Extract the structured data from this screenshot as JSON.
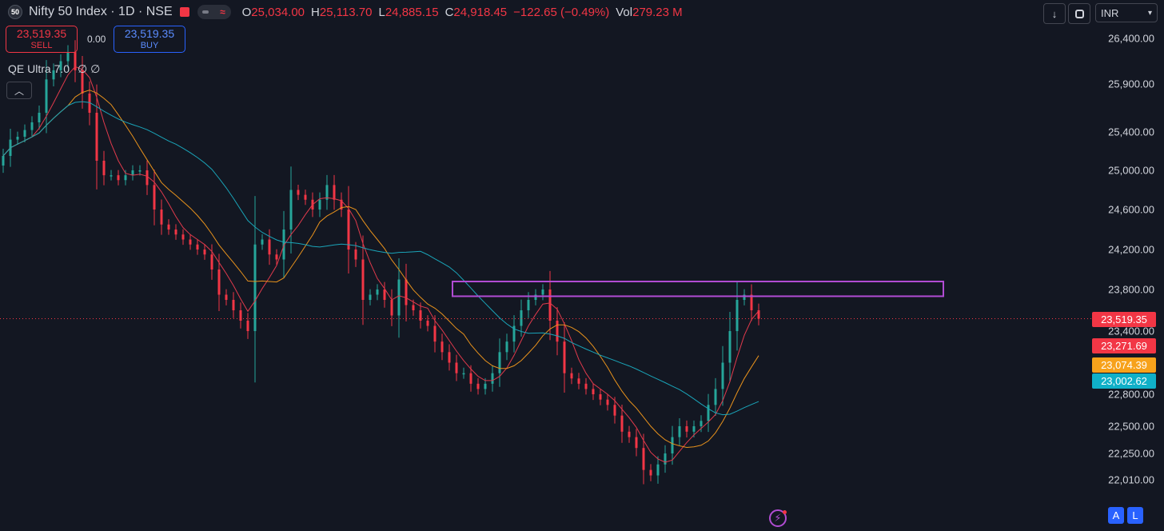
{
  "header": {
    "symbol_badge": "50",
    "title": "Nifty 50 Index · 1D · NSE",
    "pill_text": "≈",
    "ohlc": [
      {
        "k": "O",
        "v": "25,034.00"
      },
      {
        "k": "H",
        "v": "25,113.70"
      },
      {
        "k": "L",
        "v": "24,885.15"
      },
      {
        "k": "C",
        "v": "24,918.45"
      },
      {
        "k": "",
        "v": "−122.65 (−0.49%)"
      },
      {
        "k": "Vol",
        "v": "279.23 M"
      }
    ],
    "currency": "INR"
  },
  "trade": {
    "sell_price": "23,519.35",
    "sell_label": "SELL",
    "spread": "0.00",
    "buy_price": "23,519.35",
    "buy_label": "BUY"
  },
  "indicator": {
    "name": "QE Ultra 7.0",
    "flags": "∅ ∅"
  },
  "bottom": {
    "a": "A",
    "l": "L"
  },
  "colors": {
    "up": "#26a69a",
    "down": "#f23645",
    "ma_fast": "#e03a4c",
    "ma_mid": "#e8921c",
    "ma_slow": "#1aa4b8",
    "box": "#b14cd3",
    "bg": "#131722"
  },
  "chart_data": {
    "type": "candlestick",
    "symbol": "Nifty 50 Index",
    "interval": "1D",
    "y_ticks": [
      26400,
      25900,
      25400,
      25000,
      24600,
      24200,
      23800,
      23400,
      22800,
      22500,
      22250,
      22010
    ],
    "y_tick_labels": [
      "26,400.00",
      "25,900.00",
      "25,400.00",
      "25,000.00",
      "24,600.00",
      "24,200.00",
      "23,800.00",
      "23,400.00",
      "22,800.00",
      "22,500.00",
      "22,250.00",
      "22,010.00"
    ],
    "price_tags": [
      {
        "label": "23,519.35",
        "value": 23519.35,
        "color": "#f23645"
      },
      {
        "label": "23,271.69",
        "value": 23271.69,
        "color": "#f23645"
      },
      {
        "label": "23,074.39",
        "value": 23074.39,
        "color": "#f7a21b"
      },
      {
        "label": "23,002.62",
        "value": 23002.62,
        "color": "#10b0c8"
      }
    ],
    "current_price": 23519.35,
    "zone": {
      "top": 23880,
      "bottom": 23735
    },
    "closes": [
      25150,
      25320,
      25350,
      25420,
      25500,
      25600,
      25950,
      26050,
      26150,
      26250,
      26050,
      25800,
      25600,
      25100,
      24950,
      24950,
      24900,
      24950,
      25000,
      25000,
      24850,
      24600,
      24450,
      24400,
      24350,
      24300,
      24250,
      24200,
      24150,
      24000,
      23750,
      23700,
      23600,
      23500,
      23400,
      24250,
      24300,
      24150,
      24100,
      24400,
      24800,
      24750,
      24700,
      24600,
      24700,
      24850,
      24700,
      24600,
      24200,
      24100,
      23700,
      23750,
      23800,
      23700,
      23550,
      23900,
      23650,
      23600,
      23500,
      23450,
      23300,
      23200,
      23100,
      23000,
      23000,
      22900,
      22850,
      22900,
      23000,
      23200,
      23300,
      23450,
      23600,
      23700,
      23750,
      23800,
      23500,
      23300,
      23000,
      22950,
      22900,
      22850,
      22800,
      22750,
      22700,
      22600,
      22450,
      22400,
      22300,
      22100,
      22050,
      22150,
      22250,
      22400,
      22500,
      22450,
      22500,
      22550,
      22700,
      22850,
      23100,
      23400,
      23700,
      23750,
      23600,
      23519
    ]
  }
}
